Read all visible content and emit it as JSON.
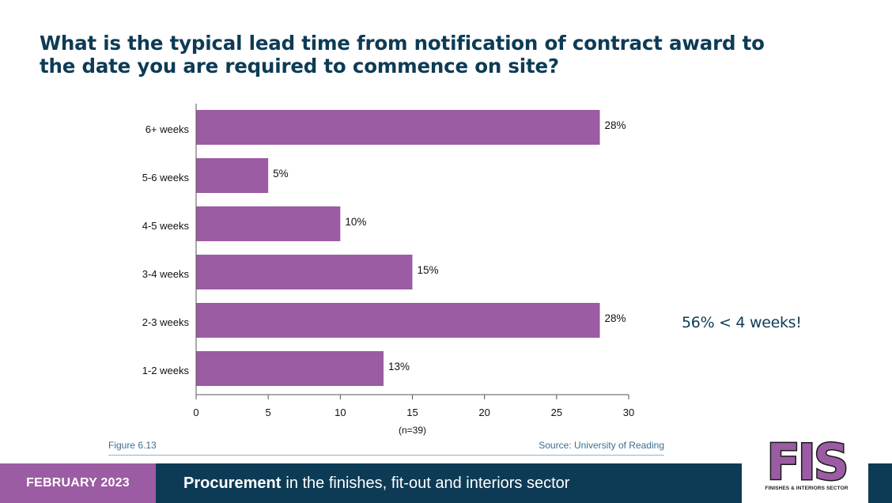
{
  "title": "What is the typical lead time from notification of contract award to the date you are required to commence on site?",
  "annotation": "56% < 4 weeks!",
  "figure_label": "Figure 6.13",
  "source": "Source: University of Reading",
  "footer": {
    "date": "FEBRUARY 2023",
    "title_bold": "Procurement",
    "title_rest": "in the finishes, fit-out and interiors sector"
  },
  "logo": {
    "letters": "FIS",
    "tagline": "FINISHES & INTERIORS SECTOR"
  },
  "colors": {
    "bar": "#9b5ca3",
    "navy": "#0d3b56",
    "purple": "#9b5ca3"
  },
  "chart_data": {
    "type": "bar",
    "orientation": "horizontal",
    "categories": [
      "6+ weeks",
      "5-6 weeks",
      "4-5 weeks",
      "3-4 weeks",
      "2-3 weeks",
      "1-2 weeks"
    ],
    "values": [
      28,
      5,
      10,
      15,
      28,
      13
    ],
    "value_labels": [
      "28%",
      "5%",
      "10%",
      "15%",
      "28%",
      "13%"
    ],
    "x_ticks": [
      0,
      5,
      10,
      15,
      20,
      25,
      30
    ],
    "xlabel": "(n=39)",
    "xlim": [
      0,
      30
    ],
    "grid": false
  }
}
